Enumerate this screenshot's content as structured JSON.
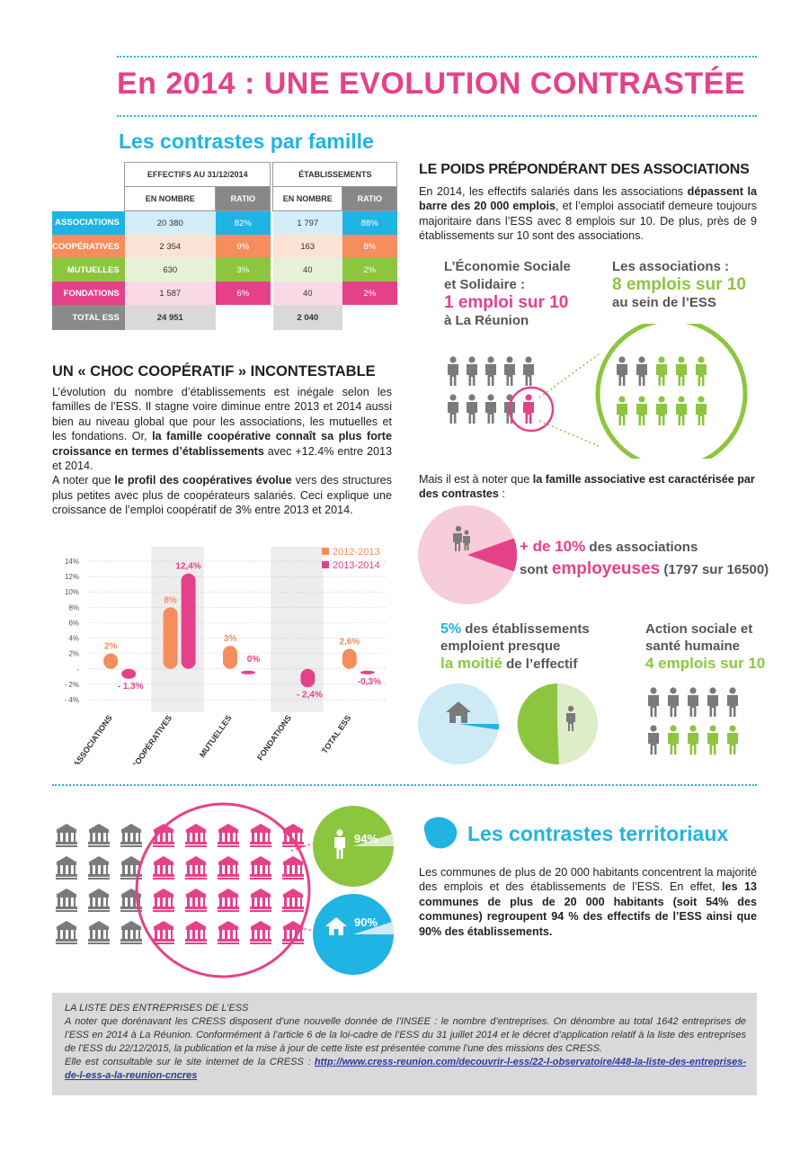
{
  "title": "En 2014 : UNE EVOLUTION CONTRASTÉE",
  "section_famille": "Les contrastes par famille",
  "table": {
    "header_effectifs": "EFFECTIFS AU 31/12/2014",
    "header_etab": "ÉTABLISSEMENTS",
    "col_nombre": "EN NOMBRE",
    "col_ratio": "RATIO",
    "rows": [
      {
        "label": "ASSOCIATIONS",
        "eff_n": "20 380",
        "eff_r": "82%",
        "etab_n": "1 797",
        "etab_r": "88%",
        "color": "#1fb4e3",
        "light": "#d3eef8"
      },
      {
        "label": "COOPÉRATIVES",
        "eff_n": "2 354",
        "eff_r": "9%",
        "etab_n": "163",
        "etab_r": "8%",
        "color": "#f58d5c",
        "light": "#fde3d6"
      },
      {
        "label": "MUTUELLES",
        "eff_n": "630",
        "eff_r": "3%",
        "etab_n": "40",
        "etab_r": "2%",
        "color": "#8cc63f",
        "light": "#e5f2d5"
      },
      {
        "label": "FONDATIONS",
        "eff_n": "1 587",
        "eff_r": "6%",
        "etab_n": "40",
        "etab_r": "2%",
        "color": "#e5418a",
        "light": "#f9d9e6"
      }
    ],
    "total": {
      "label": "TOTAL ESS",
      "eff_n": "24 951",
      "etab_n": "2 040"
    }
  },
  "choc": {
    "heading": "UN « CHOC COOPÉRATIF » INCONTESTABLE",
    "p1_a": "L’évolution du nombre d’établissements est inégale selon les familles de l’ESS. Il stagne voire diminue entre 2013 et 2014 aussi bien au niveau global que pour les associations, les mutuelles et les fondations. Or, ",
    "p1_b": "la famille coopérative connaît sa plus forte croissance en termes d’établissements",
    "p1_c": " avec +12.4% entre 2013 et 2014.",
    "p2_a": "A noter que ",
    "p2_b": "le profil des coopératives évolue",
    "p2_c": " vers des structures plus petites avec plus de coopérateurs salariés. Ceci explique une croissance de l’emploi coopératif de 3% entre 2013 et 2014."
  },
  "chart_data": {
    "type": "bar",
    "categories": [
      "ASSOCIATIONS",
      "COOPÉRATIVES",
      "MUTUELLES",
      "FONDATIONS",
      "TOTAL ESS"
    ],
    "series": [
      {
        "name": "2012-2013",
        "values": [
          2,
          8,
          3,
          null,
          2.6
        ],
        "color": "#f58d5c"
      },
      {
        "name": "2013-2014",
        "values": [
          -1.3,
          12.4,
          0,
          -2.4,
          -0.3
        ],
        "color": "#e5418a"
      }
    ],
    "labels": [
      [
        "2%",
        "- 1,3%"
      ],
      [
        "8%",
        "12,4%"
      ],
      [
        "3%",
        "0%"
      ],
      [
        "",
        "- 2,4%"
      ],
      [
        "2,6%",
        "-0,3%"
      ]
    ],
    "yticks": [
      "14%",
      "12%",
      "10%",
      "8%",
      "6%",
      "4%",
      "2%",
      "-",
      "- 2%",
      "- 4%"
    ],
    "ytick_values": [
      14,
      12,
      10,
      8,
      6,
      4,
      2,
      0,
      -2,
      -4
    ],
    "ylim": [
      -4,
      14
    ],
    "legend": "top-right",
    "grid": true
  },
  "poids": {
    "heading": "LE POIDS PRÉPONDÉRANT DES ASSOCIATIONS",
    "p_a": "En 2014, les effectifs salariés dans les associations ",
    "p_b": "dépassent la barre des 20 000 emplois",
    "p_c": ", et l’emploi associatif demeure toujours majoritaire dans l’ESS avec 8 emplois sur 10. De plus, près de 9 établissements sur 10 sont des associations.",
    "left_l1": "L’Économie Sociale",
    "left_l2": "et Solidaire :",
    "left_big": "1 emploi sur 10",
    "left_l3": "à La Réunion",
    "right_l1": "Les associations :",
    "right_big": "8 emplois sur 10",
    "right_l2": "au sein de l’ESS"
  },
  "contrastes": {
    "p_a": "Mais il est à noter que ",
    "p_b": "la famille associative est caractérisée par des contrastes",
    "p_c": " :",
    "emp_pct": "+ de 10%",
    "emp_t1": " des associations",
    "emp_t2": "sont ",
    "emp_big": "employeuses",
    "emp_t3": " (1797 sur 16500)",
    "emp_share": 0.109,
    "etab_pct": "5%",
    "etab_t1": " des établissements",
    "etab_t2": "emploient presque",
    "etab_big": "la moitié",
    "etab_t3": " de l’effectif",
    "action_l1": "Action sociale et",
    "action_l2": "santé humaine",
    "action_big": "4 emplois sur 10"
  },
  "territoriaux": {
    "heading": "Les contrastes territoriaux",
    "p_a": "Les communes de plus de 20 000 habitants concentrent la majorité des emplois et des établissements de l’ESS. En effet, ",
    "p_b": "les 13 communes de plus de 20 000 habitants (soit 54% des communes) regroupent 94 % des effectifs de l’ESS ainsi que 90% des établissements.",
    "pct_emplois": "94%",
    "pct_etab": "90%"
  },
  "liste": {
    "title": "LA LISTE DES ENTREPRISES DE L’ESS",
    "p1": "A noter que dorénavant les CRESS disposent d’une nouvelle donnée de l’INSEE : le nombre d’entreprises. On dénombre au total 1642 entreprises de l’ESS en 2014 à La Réunion. Conformément à l’article 6 de la loi-cadre de l’ESS du 31 juillet 2014 et le décret d’application relatif à la liste des entreprises de l’ESS du 22/12/2015, la publication et la mise à jour de cette liste est présentée comme l’une des missions des CRESS.",
    "p2": "Elle est consultable sur le site internet de la CRESS : ",
    "link": "http://www.cress-reunion.com/decouvrir-l-ess/22-l-observatoire/448-la-liste-des-entreprises-de-l-ess-a-la-reunion-cncres"
  },
  "colors": {
    "pink": "#e5418a",
    "cyan": "#1fb4e3",
    "green": "#8cc63f",
    "orange": "#f58d5c",
    "grey": "#8a8a8a"
  }
}
